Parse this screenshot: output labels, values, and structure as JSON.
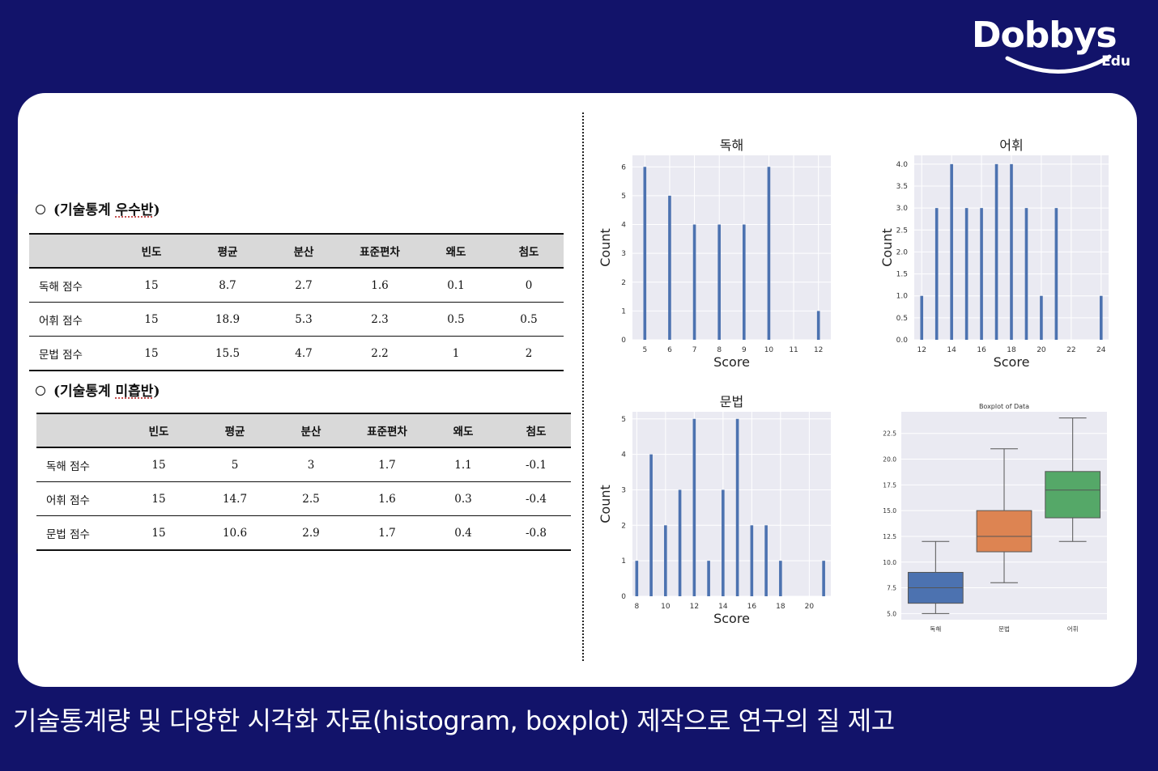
{
  "brand": {
    "logo_main": "Dobbys",
    "logo_sub": "Edu"
  },
  "caption": "기술통계량 및 다양한 시각화 자료(histogram, boxplot) 제작으로 연구의 질 제고",
  "tables": [
    {
      "title_prefix": "(기술통계 ",
      "title_emph": "우수반",
      "title_suffix": ")",
      "headers": [
        "",
        "빈도",
        "평균",
        "분산",
        "표준편차",
        "왜도",
        "첨도"
      ],
      "rows": [
        [
          "독해 점수",
          "15",
          "8.7",
          "2.7",
          "1.6",
          "0.1",
          "0"
        ],
        [
          "어휘 점수",
          "15",
          "18.9",
          "5.3",
          "2.3",
          "0.5",
          "0.5"
        ],
        [
          "문법 점수",
          "15",
          "15.5",
          "4.7",
          "2.2",
          "1",
          "2"
        ]
      ]
    },
    {
      "title_prefix": "(기술통계 ",
      "title_emph": "미흡반",
      "title_suffix": ")",
      "headers": [
        "",
        "빈도",
        "평균",
        "분산",
        "표준편차",
        "왜도",
        "첨도"
      ],
      "rows": [
        [
          "독해 점수",
          "15",
          "5",
          "3",
          "1.7",
          "1.1",
          "-0.1"
        ],
        [
          "어휘 점수",
          "15",
          "14.7",
          "2.5",
          "1.6",
          "0.3",
          "-0.4"
        ],
        [
          "문법 점수",
          "15",
          "10.6",
          "2.9",
          "1.7",
          "0.4",
          "-0.8"
        ]
      ]
    }
  ],
  "colors": {
    "bar": "#4c72b0",
    "plot_bg": "#eaeaf2",
    "box1": "#4c72b0",
    "box2": "#dd8452",
    "box3": "#55a868"
  },
  "chart_data": [
    {
      "type": "bar",
      "title": "독해",
      "xlabel": "Score",
      "ylabel": "Count",
      "x": [
        5,
        6,
        7,
        8,
        9,
        10,
        12
      ],
      "values": [
        6,
        5,
        4,
        4,
        4,
        6,
        1
      ],
      "xlim": [
        4.5,
        12.5
      ],
      "ylim": [
        0,
        6.4
      ],
      "xticks": [
        5,
        6,
        7,
        8,
        9,
        10,
        11,
        12
      ],
      "yticks": [
        0,
        1,
        2,
        3,
        4,
        5,
        6
      ],
      "ytick_labels": [
        "0",
        "1",
        "2",
        "3",
        "4",
        "5",
        "6"
      ],
      "grid": true
    },
    {
      "type": "bar",
      "title": "어휘",
      "xlabel": "Score",
      "ylabel": "Count",
      "x": [
        12,
        13,
        14,
        15,
        16,
        17,
        18,
        19,
        20,
        21,
        24
      ],
      "values": [
        1,
        3,
        4,
        3,
        3,
        4,
        4,
        3,
        1,
        3,
        1
      ],
      "xlim": [
        11.5,
        24.5
      ],
      "ylim": [
        0,
        4.2
      ],
      "xticks": [
        12,
        14,
        16,
        18,
        20,
        22,
        24
      ],
      "yticks": [
        0,
        0.5,
        1,
        1.5,
        2,
        2.5,
        3,
        3.5,
        4
      ],
      "ytick_labels": [
        "0.0",
        "0.5",
        "1.0",
        "1.5",
        "2.0",
        "2.5",
        "3.0",
        "3.5",
        "4.0"
      ],
      "grid": true
    },
    {
      "type": "bar",
      "title": "문법",
      "xlabel": "Score",
      "ylabel": "Count",
      "x": [
        8,
        9,
        10,
        11,
        12,
        13,
        14,
        15,
        16,
        17,
        18,
        21
      ],
      "values": [
        1,
        4,
        2,
        3,
        5,
        1,
        3,
        5,
        2,
        2,
        1,
        1
      ],
      "xlim": [
        7.7,
        21.5
      ],
      "ylim": [
        0,
        5.2
      ],
      "xticks": [
        8,
        10,
        12,
        14,
        16,
        18,
        20
      ],
      "yticks": [
        0,
        1,
        2,
        3,
        4,
        5
      ],
      "ytick_labels": [
        "0",
        "1",
        "2",
        "3",
        "4",
        "5"
      ],
      "grid": true
    },
    {
      "type": "box",
      "title": "Boxplot of Data",
      "categories": [
        "독해",
        "문법",
        "어휘"
      ],
      "boxes": [
        {
          "min": 5.0,
          "q1": 6.0,
          "median": 7.5,
          "q3": 9.0,
          "max": 12.0
        },
        {
          "min": 8.0,
          "q1": 11.0,
          "median": 12.5,
          "q3": 15.0,
          "max": 21.0
        },
        {
          "min": 12.0,
          "q1": 14.3,
          "median": 17.0,
          "q3": 18.8,
          "max": 24.0
        }
      ],
      "ylim": [
        4.4,
        24.6
      ],
      "yticks": [
        5,
        7.5,
        10,
        12.5,
        15,
        17.5,
        20,
        22.5
      ],
      "ytick_labels": [
        "5.0",
        "7.5",
        "10.0",
        "12.5",
        "15.0",
        "17.5",
        "20.0",
        "22.5"
      ],
      "grid": true
    }
  ]
}
